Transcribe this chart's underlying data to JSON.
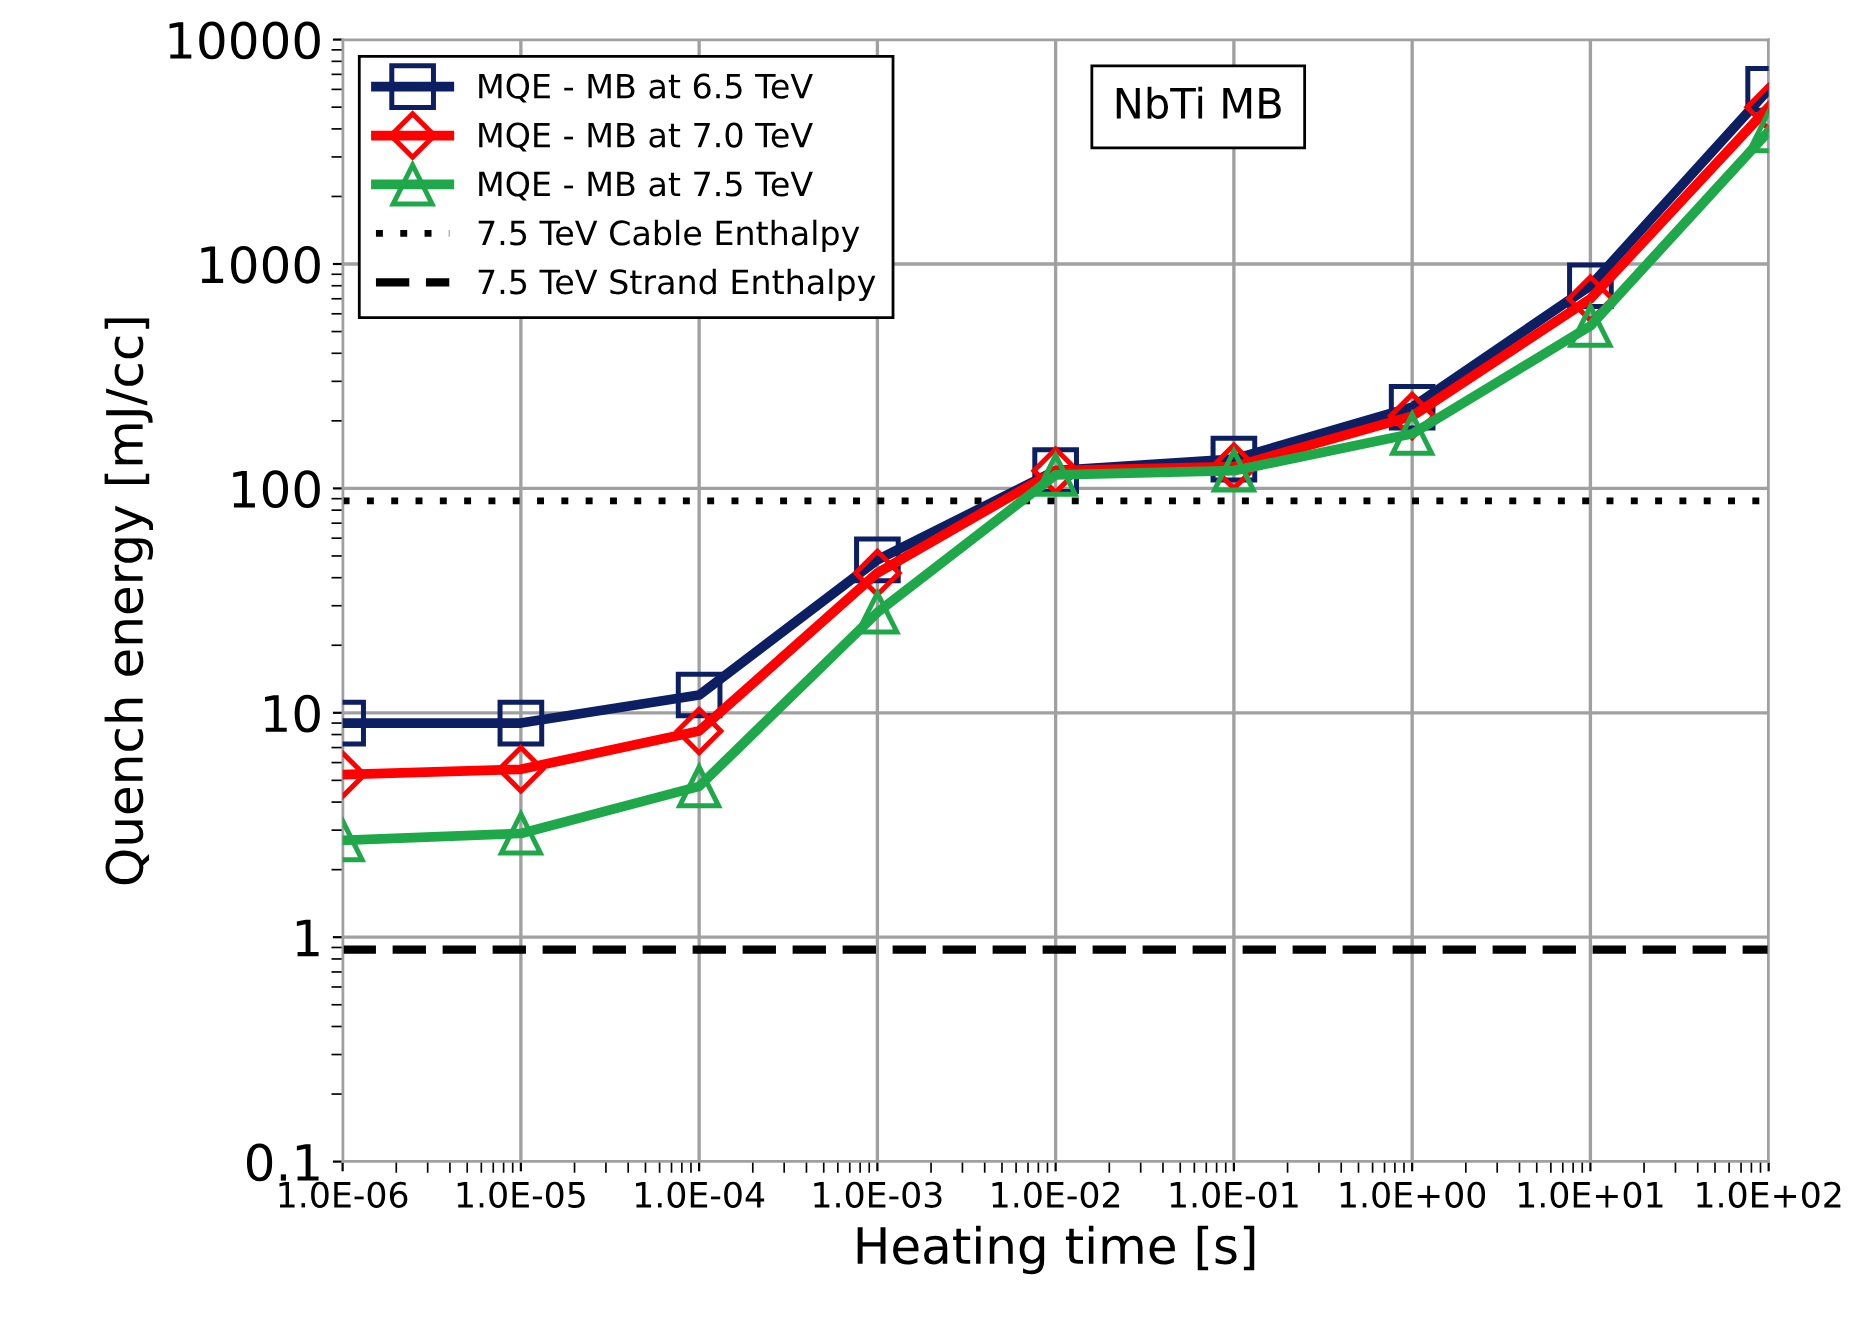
{
  "chart_data": {
    "type": "line",
    "xlabel": "Heating time [s]",
    "ylabel": "Quench energy [mJ/cc]",
    "log": "xy",
    "grid": true,
    "legend": "top left",
    "x": [
      1e-06,
      1e-05,
      0.0001,
      0.001,
      0.01,
      0.1,
      1,
      10,
      100
    ],
    "xlim": [
      1e-06,
      100
    ],
    "ylim": [
      0.1,
      10000
    ],
    "xticks": [
      {
        "value": 1e-06,
        "label": "1.0E-06"
      },
      {
        "value": 1e-05,
        "label": "1.0E-05"
      },
      {
        "value": 0.0001,
        "label": "1.0E-04"
      },
      {
        "value": 0.001,
        "label": "1.0E-03"
      },
      {
        "value": 0.01,
        "label": "1.0E-02"
      },
      {
        "value": 0.1,
        "label": "1.0E-01"
      },
      {
        "value": 1,
        "label": "1.0E+00"
      },
      {
        "value": 10,
        "label": "1.0E+01"
      },
      {
        "value": 100,
        "label": "1.0E+02"
      }
    ],
    "yticks": [
      0.1,
      1,
      10,
      100,
      1000,
      10000
    ],
    "series": [
      {
        "name": "MQE - MB at 6.5 TeV",
        "color": "#0d1f63",
        "marker": "square",
        "values": [
          9,
          9,
          12,
          48,
          120,
          135,
          230,
          800,
          6000
        ]
      },
      {
        "name": "MQE - MB at 7.0 TeV",
        "color": "#ff0000",
        "marker": "diamond",
        "values": [
          5.3,
          5.6,
          8.3,
          42,
          120,
          125,
          210,
          700,
          5000
        ]
      },
      {
        "name": "MQE - MB at 7.5 TeV",
        "color": "#1fa84a",
        "marker": "triangle",
        "values": [
          2.7,
          2.9,
          4.7,
          28,
          115,
          120,
          175,
          530,
          3900
        ]
      }
    ],
    "ref_lines": [
      {
        "axis": "y",
        "value": 88,
        "label": "7.5 TeV Cable Enthalpy",
        "color": "#000000",
        "line_style": "dotted"
      },
      {
        "axis": "y",
        "value": 0.88,
        "label": "7.5 TeV Strand Enthalpy",
        "color": "#000000",
        "line_style": "dashed"
      }
    ],
    "annotations": [
      "NbTi MB"
    ]
  }
}
